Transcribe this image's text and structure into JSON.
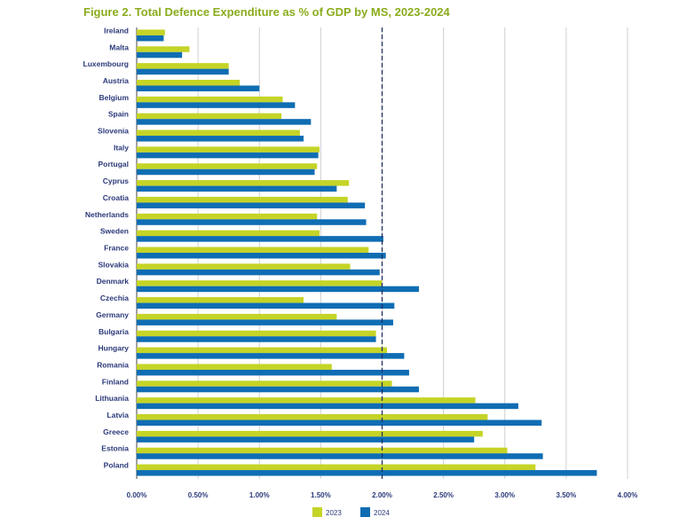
{
  "title": "Figure 2. Total Defence Expenditure as % of GDP by MS, 2023-2024",
  "colors": {
    "s2023": "#c5d426",
    "s2024": "#0f6db3",
    "grid": "#cfcfcf",
    "ref": "#1f2e63"
  },
  "chart_data": {
    "type": "bar",
    "orientation": "horizontal",
    "title": "Figure 2. Total Defence Expenditure as % of GDP by MS, 2023-2024",
    "categories": [
      "Ireland",
      "Malta",
      "Luxembourg",
      "Austria",
      "Belgium",
      "Spain",
      "Slovenia",
      "Italy",
      "Portugal",
      "Cyprus",
      "Croatia",
      "Netherlands",
      "Sweden",
      "France",
      "Slovakia",
      "Denmark",
      "Czechia",
      "Germany",
      "Bulgaria",
      "Hungary",
      "Romania",
      "Finland",
      "Lithuania",
      "Latvia",
      "Greece",
      "Estonia",
      "Poland"
    ],
    "series": [
      {
        "name": "2023",
        "values": [
          0.23,
          0.43,
          0.75,
          0.84,
          1.19,
          1.18,
          1.33,
          1.49,
          1.47,
          1.73,
          1.72,
          1.47,
          1.49,
          1.89,
          1.74,
          2.0,
          1.36,
          1.63,
          1.95,
          2.04,
          1.59,
          2.08,
          2.76,
          2.86,
          2.82,
          3.02,
          3.25
        ]
      },
      {
        "name": "2024",
        "values": [
          0.22,
          0.37,
          0.75,
          1.0,
          1.29,
          1.42,
          1.36,
          1.48,
          1.45,
          1.63,
          1.86,
          1.87,
          2.01,
          2.03,
          1.98,
          2.3,
          2.1,
          2.09,
          1.95,
          2.18,
          2.22,
          2.3,
          3.11,
          3.3,
          2.75,
          3.31,
          3.75
        ]
      }
    ],
    "xlim": [
      0,
      4
    ],
    "xticks": [
      "0.00%",
      "0.50%",
      "1.00%",
      "1.50%",
      "2.00%",
      "2.50%",
      "3.00%",
      "3.50%",
      "4.00%"
    ],
    "reference_line": 2.0,
    "grid": true,
    "legend": {
      "placement": "bottom-center",
      "entries": [
        "2023",
        "2024"
      ]
    }
  }
}
